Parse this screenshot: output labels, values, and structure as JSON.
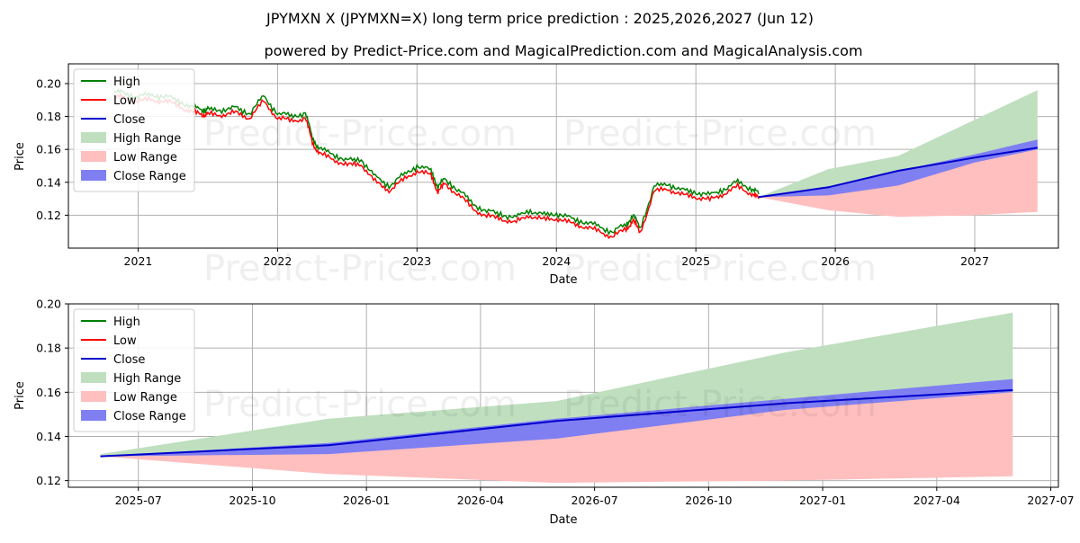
{
  "titles": {
    "main": "JPYMXN X (JPYMXN=X) long term price prediction : 2025,2026,2027 (Jun 12)",
    "sub": "powered by Predict-Price.com and MagicalPrediction.com and MagicalAnalysis.com"
  },
  "watermark": "Predict-Price.com",
  "chart_data": [
    {
      "type": "line",
      "title": "JPYMXN X (JPYMXN=X) long term price prediction : 2025,2026,2027 (Jun 12)",
      "xlabel": "Date",
      "ylabel": "Price",
      "xlim": [
        2020.5,
        2027.6
      ],
      "ylim": [
        0.1,
        0.212
      ],
      "yticks": [
        0.12,
        0.14,
        0.16,
        0.18,
        0.2
      ],
      "ytick_labels": [
        "0.12",
        "0.14",
        "0.16",
        "0.18",
        "0.20"
      ],
      "xticks": [
        2021,
        2022,
        2023,
        2024,
        2025,
        2026,
        2027
      ],
      "xtick_labels": [
        "2021",
        "2022",
        "2023",
        "2024",
        "2025",
        "2026",
        "2027"
      ],
      "grid": true,
      "legend_position": "top-left",
      "legend": [
        "High",
        "Low",
        "Close",
        "High Range",
        "Low Range",
        "Close Range"
      ],
      "colors": {
        "high": "#008000",
        "low": "#ff0000",
        "close": "#0000cc",
        "high_range": "#bfdfbf",
        "low_range": "#ffbfbf",
        "close_range": "#7f7ff2"
      },
      "history": {
        "x": [
          2020.83,
          2020.9,
          2021.0,
          2021.1,
          2021.2,
          2021.3,
          2021.4,
          2021.47,
          2021.5,
          2021.6,
          2021.7,
          2021.8,
          2021.9,
          2022.0,
          2022.1,
          2022.2,
          2022.25,
          2022.3,
          2022.4,
          2022.5,
          2022.6,
          2022.7,
          2022.8,
          2022.9,
          2023.0,
          2023.1,
          2023.15,
          2023.2,
          2023.3,
          2023.4,
          2023.5,
          2023.6,
          2023.7,
          2023.8,
          2023.9,
          2024.0,
          2024.1,
          2024.2,
          2024.3,
          2024.4,
          2024.5,
          2024.55,
          2024.6,
          2024.7,
          2024.8,
          2024.9,
          2025.0,
          2025.1,
          2025.2,
          2025.3,
          2025.4,
          2025.45
        ],
        "close": [
          0.193,
          0.192,
          0.19,
          0.191,
          0.19,
          0.187,
          0.183,
          0.182,
          0.182,
          0.182,
          0.183,
          0.18,
          0.19,
          0.18,
          0.178,
          0.18,
          0.165,
          0.158,
          0.155,
          0.151,
          0.152,
          0.141,
          0.136,
          0.142,
          0.148,
          0.145,
          0.135,
          0.14,
          0.133,
          0.125,
          0.12,
          0.119,
          0.116,
          0.121,
          0.118,
          0.119,
          0.116,
          0.114,
          0.111,
          0.108,
          0.112,
          0.118,
          0.11,
          0.135,
          0.137,
          0.133,
          0.132,
          0.13,
          0.134,
          0.138,
          0.134,
          0.131
        ],
        "high_offset": 0.0025,
        "low_offset": 0.0025
      },
      "forecast": {
        "x": [
          2025.45,
          2025.95,
          2026.45,
          2027.0,
          2027.45
        ],
        "close": [
          0.131,
          0.137,
          0.147,
          0.155,
          0.161
        ],
        "high_range": [
          0.131,
          0.148,
          0.156,
          0.178,
          0.196
        ],
        "low_range": [
          0.131,
          0.123,
          0.119,
          0.12,
          0.122
        ],
        "close_range_upper": [
          0.131,
          0.137,
          0.147,
          0.157,
          0.166
        ],
        "close_range_lower": [
          0.131,
          0.132,
          0.138,
          0.152,
          0.16
        ]
      }
    },
    {
      "type": "line",
      "title": "",
      "xlabel": "Date",
      "ylabel": "Price",
      "xlim": [
        -0.07,
        2.1
      ],
      "ylim": [
        0.117,
        0.2
      ],
      "yticks": [
        0.12,
        0.14,
        0.16,
        0.18,
        0.2
      ],
      "ytick_labels": [
        "0.12",
        "0.14",
        "0.16",
        "0.18",
        "0.20"
      ],
      "xticks": [
        0.0833,
        0.3333,
        0.5833,
        0.8333,
        1.0833,
        1.3333,
        1.5833,
        1.8333,
        2.0833
      ],
      "xtick_labels": [
        "2025-07",
        "2025-10",
        "2026-01",
        "2026-04",
        "2026-07",
        "2026-10",
        "2027-01",
        "2027-04",
        "2027-07"
      ],
      "grid": true,
      "legend_position": "top-left",
      "legend": [
        "High",
        "Low",
        "Close",
        "High Range",
        "Low Range",
        "Close Range"
      ],
      "colors": {
        "high": "#008000",
        "low": "#ff0000",
        "close": "#0000cc",
        "high_range": "#bfdfbf",
        "low_range": "#ffbfbf",
        "close_range": "#7f7ff2"
      },
      "forecast": {
        "x": [
          0.0,
          0.5,
          1.0,
          1.5,
          2.0
        ],
        "close": [
          0.131,
          0.136,
          0.147,
          0.155,
          0.161
        ],
        "high_range": [
          0.132,
          0.148,
          0.156,
          0.178,
          0.196
        ],
        "low_range": [
          0.131,
          0.123,
          0.119,
          0.12,
          0.122
        ],
        "close_range_upper": [
          0.131,
          0.137,
          0.148,
          0.157,
          0.166
        ],
        "close_range_lower": [
          0.131,
          0.132,
          0.139,
          0.152,
          0.16
        ]
      }
    }
  ]
}
